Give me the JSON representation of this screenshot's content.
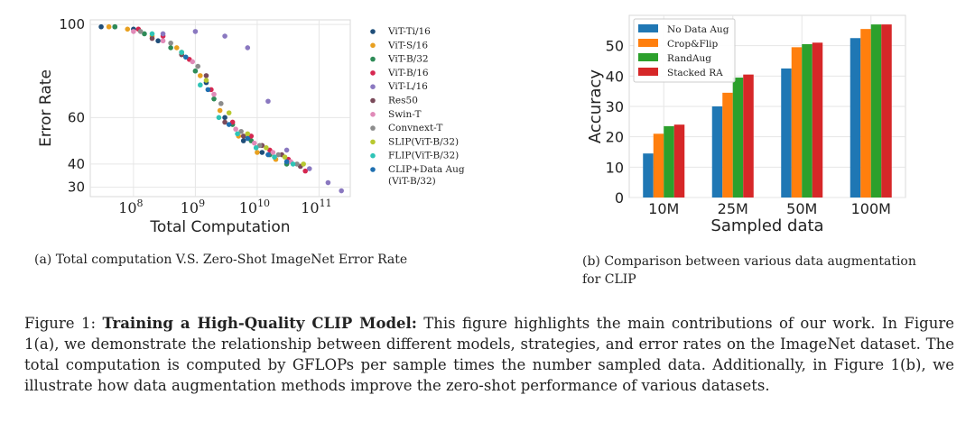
{
  "chart_data": [
    {
      "type": "scatter",
      "xscale": "log",
      "xlabel": "Total Computation",
      "ylabel": "Error Rate",
      "xlim": [
        20000000.0,
        320000000000.0
      ],
      "ylim": [
        26,
        102
      ],
      "xticks": [
        {
          "v": 100000000.0,
          "base": "10",
          "exp": "8"
        },
        {
          "v": 1000000000.0,
          "base": "10",
          "exp": "9"
        },
        {
          "v": 10000000000.0,
          "base": "10",
          "exp": "10"
        },
        {
          "v": 100000000000.0,
          "base": "10",
          "exp": "11"
        }
      ],
      "yticks": [
        {
          "v": 30,
          "label": "30"
        },
        {
          "v": 40,
          "label": "40"
        },
        {
          "v": 60,
          "label": "60"
        },
        {
          "v": 100,
          "label": "100"
        }
      ],
      "legend_position": "right",
      "series": [
        {
          "name": "ViT-Ti/16",
          "color": "#1f4e79",
          "points": [
            [
              30000000.0,
              99
            ],
            [
              50000000.0,
              99
            ],
            [
              100000000.0,
              98
            ],
            [
              250000000.0,
              93
            ],
            [
              600000000.0,
              88
            ],
            [
              1500000000.0,
              75
            ],
            [
              3000000000.0,
              60
            ],
            [
              6000000000.0,
              50
            ],
            [
              12000000000.0,
              45
            ]
          ]
        },
        {
          "name": "ViT-S/16",
          "color": "#e8a020",
          "points": [
            [
              40000000.0,
              99
            ],
            [
              80000000.0,
              98
            ],
            [
              200000000.0,
              95
            ],
            [
              500000000.0,
              90
            ],
            [
              1200000000.0,
              78
            ],
            [
              2500000000.0,
              63
            ],
            [
              5000000000.0,
              52
            ],
            [
              10000000000.0,
              45
            ],
            [
              20000000000.0,
              42
            ]
          ]
        },
        {
          "name": "ViT-B/32",
          "color": "#2e8b57",
          "points": [
            [
              50000000.0,
              99
            ],
            [
              150000000.0,
              96
            ],
            [
              400000000.0,
              90
            ],
            [
              1000000000.0,
              80
            ],
            [
              2000000000.0,
              68
            ],
            [
              4000000000.0,
              57
            ],
            [
              8000000000.0,
              50
            ],
            [
              16000000000.0,
              44
            ],
            [
              30000000000.0,
              40
            ]
          ]
        },
        {
          "name": "ViT-B/16",
          "color": "#d62750",
          "points": [
            [
              120000000.0,
              98
            ],
            [
              300000000.0,
              95
            ],
            [
              800000000.0,
              85
            ],
            [
              1800000000.0,
              72
            ],
            [
              4000000000.0,
              58
            ],
            [
              8000000000.0,
              52
            ],
            [
              16000000000.0,
              46
            ],
            [
              32000000000.0,
              42
            ],
            [
              60000000000.0,
              37
            ]
          ]
        },
        {
          "name": "ViT-L/16",
          "color": "#8a78c0",
          "points": [
            [
              300000000.0,
              96
            ],
            [
              1000000000.0,
              97
            ],
            [
              3000000000.0,
              95
            ],
            [
              7000000000.0,
              90
            ],
            [
              15000000000.0,
              67
            ],
            [
              30000000000.0,
              46
            ],
            [
              70000000000.0,
              38
            ],
            [
              140000000000.0,
              32
            ],
            [
              230000000000.0,
              28.5
            ]
          ]
        },
        {
          "name": "Res50",
          "color": "#7a4a5a",
          "points": [
            [
              200000000.0,
              94
            ],
            [
              600000000.0,
              87
            ],
            [
              1500000000.0,
              78
            ],
            [
              3000000000.0,
              58
            ],
            [
              6000000000.0,
              52
            ],
            [
              12000000000.0,
              48
            ],
            [
              25000000000.0,
              44
            ],
            [
              50000000000.0,
              39
            ]
          ]
        },
        {
          "name": "Swin-T",
          "color": "#e08ab8",
          "points": [
            [
              100000000.0,
              97
            ],
            [
              300000000.0,
              93
            ],
            [
              900000000.0,
              84
            ],
            [
              2000000000.0,
              70
            ],
            [
              4500000000.0,
              55
            ],
            [
              9000000000.0,
              49
            ],
            [
              18000000000.0,
              45
            ],
            [
              35000000000.0,
              41
            ]
          ]
        },
        {
          "name": "Convnext-T",
          "color": "#8c8c8c",
          "points": [
            [
              130000000.0,
              97
            ],
            [
              400000000.0,
              92
            ],
            [
              1100000000.0,
              82
            ],
            [
              2600000000.0,
              66
            ],
            [
              5500000000.0,
              54
            ],
            [
              11000000000.0,
              48
            ],
            [
              22000000000.0,
              44
            ],
            [
              44000000000.0,
              40
            ]
          ]
        },
        {
          "name": "SLIP(ViT-B/32)",
          "color": "#b8c830",
          "points": [
            [
              600000000.0,
              88
            ],
            [
              1500000000.0,
              76
            ],
            [
              3500000000.0,
              62
            ],
            [
              7000000000.0,
              53
            ],
            [
              14000000000.0,
              47
            ],
            [
              28000000000.0,
              43
            ],
            [
              56000000000.0,
              40
            ]
          ]
        },
        {
          "name": "FLIP(ViT-B/32)",
          "color": "#2ec4b6",
          "points": [
            [
              200000000.0,
              96
            ],
            [
              600000000.0,
              88
            ],
            [
              1200000000.0,
              74
            ],
            [
              2400000000.0,
              60
            ],
            [
              4800000000.0,
              53
            ],
            [
              9600000000.0,
              47
            ],
            [
              19000000000.0,
              43
            ],
            [
              38000000000.0,
              40
            ]
          ]
        },
        {
          "name": "CLIP+Data Aug (ViT-B/32)",
          "legend_lines": [
            "CLIP+Data Aug",
            "(ViT-B/32)"
          ],
          "color": "#1f6fb0",
          "points": [
            [
              700000000.0,
              86
            ],
            [
              1600000000.0,
              72
            ],
            [
              3500000000.0,
              57
            ],
            [
              7000000000.0,
              51
            ],
            [
              15000000000.0,
              44
            ],
            [
              30000000000.0,
              41
            ]
          ]
        }
      ]
    },
    {
      "type": "bar",
      "categories": [
        "10M",
        "25M",
        "50M",
        "100M"
      ],
      "xlabel": "Sampled data",
      "ylabel": "Accuracy",
      "ylim": [
        0,
        60
      ],
      "yticks": [
        0,
        10,
        20,
        30,
        40,
        50
      ],
      "legend_position": "top-left",
      "series": [
        {
          "name": "No Data Aug",
          "color": "#1f77b4",
          "values": [
            14.5,
            30,
            42.5,
            52.5
          ]
        },
        {
          "name": "Crop&Flip",
          "color": "#ff7f0e",
          "values": [
            21,
            34.5,
            49.5,
            55.5
          ]
        },
        {
          "name": "RandAug",
          "color": "#2ca02c",
          "values": [
            23.5,
            39.5,
            50.5,
            57
          ]
        },
        {
          "name": "Stacked RA",
          "color": "#d62728",
          "values": [
            24,
            40.5,
            51,
            57
          ]
        }
      ]
    }
  ],
  "captions": {
    "a": "(a) Total computation V.S. Zero-Shot ImageNet Error Rate",
    "b": "(b) Comparison between various data augmentation for CLIP"
  },
  "figure_caption": {
    "label": "Figure 1: ",
    "title": "Training a High-Quality CLIP Model:",
    "body": " This figure highlights the main contributions of our work. In Figure 1(a), we demonstrate the relationship between different models, strategies, and error rates on the ImageNet dataset. The total computation is computed by GFLOPs per sample times the number sampled data. Additionally, in Figure 1(b), we illustrate how data augmentation methods improve the zero-shot performance of various datasets."
  }
}
